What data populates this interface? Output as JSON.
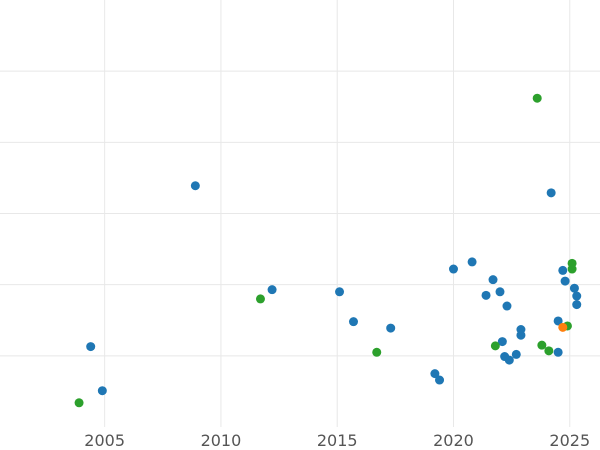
{
  "chart_data": {
    "type": "scatter",
    "title": "",
    "xlabel": "",
    "ylabel": "",
    "xlim": [
      2000.5,
      2026.3
    ],
    "ylim": [
      0,
      6
    ],
    "x_ticks": [
      2005,
      2010,
      2015,
      2020,
      2025
    ],
    "x_tick_labels": [
      "2005",
      "2010",
      "2015",
      "2020",
      "2025"
    ],
    "y_ticks": [
      1,
      2,
      3,
      4,
      5
    ],
    "y_tick_labels": [],
    "grid": true,
    "legend": "none",
    "series": [
      {
        "color": "#1f77b4",
        "points": [
          {
            "x": 2004.4,
            "y": 1.13
          },
          {
            "x": 2004.9,
            "y": 0.51
          },
          {
            "x": 2008.9,
            "y": 3.39
          },
          {
            "x": 2012.2,
            "y": 1.93
          },
          {
            "x": 2015.1,
            "y": 1.9
          },
          {
            "x": 2015.7,
            "y": 1.48
          },
          {
            "x": 2017.3,
            "y": 1.39
          },
          {
            "x": 2019.2,
            "y": 0.75
          },
          {
            "x": 2019.4,
            "y": 0.66
          },
          {
            "x": 2020.0,
            "y": 2.22
          },
          {
            "x": 2020.8,
            "y": 2.32
          },
          {
            "x": 2021.4,
            "y": 1.85
          },
          {
            "x": 2021.7,
            "y": 2.07
          },
          {
            "x": 2022.0,
            "y": 1.9
          },
          {
            "x": 2022.1,
            "y": 1.2
          },
          {
            "x": 2022.2,
            "y": 0.99
          },
          {
            "x": 2022.3,
            "y": 1.7
          },
          {
            "x": 2022.4,
            "y": 0.94
          },
          {
            "x": 2022.7,
            "y": 1.02
          },
          {
            "x": 2022.9,
            "y": 1.37
          },
          {
            "x": 2022.9,
            "y": 1.29
          },
          {
            "x": 2024.2,
            "y": 3.29
          },
          {
            "x": 2024.5,
            "y": 1.49
          },
          {
            "x": 2024.5,
            "y": 1.05
          },
          {
            "x": 2024.7,
            "y": 2.2
          },
          {
            "x": 2024.8,
            "y": 2.05
          },
          {
            "x": 2025.2,
            "y": 1.95
          },
          {
            "x": 2025.3,
            "y": 1.72
          },
          {
            "x": 2025.3,
            "y": 1.84
          }
        ]
      },
      {
        "color": "#2ca02c",
        "points": [
          {
            "x": 2003.9,
            "y": 0.34
          },
          {
            "x": 2011.7,
            "y": 1.8
          },
          {
            "x": 2016.7,
            "y": 1.05
          },
          {
            "x": 2021.8,
            "y": 1.14
          },
          {
            "x": 2023.6,
            "y": 4.62
          },
          {
            "x": 2023.8,
            "y": 1.15
          },
          {
            "x": 2024.1,
            "y": 1.07
          },
          {
            "x": 2024.9,
            "y": 1.42
          },
          {
            "x": 2025.1,
            "y": 2.3
          },
          {
            "x": 2025.1,
            "y": 2.22
          }
        ]
      },
      {
        "color": "#ff7f0e",
        "points": [
          {
            "x": 2024.7,
            "y": 1.4
          }
        ]
      }
    ]
  }
}
